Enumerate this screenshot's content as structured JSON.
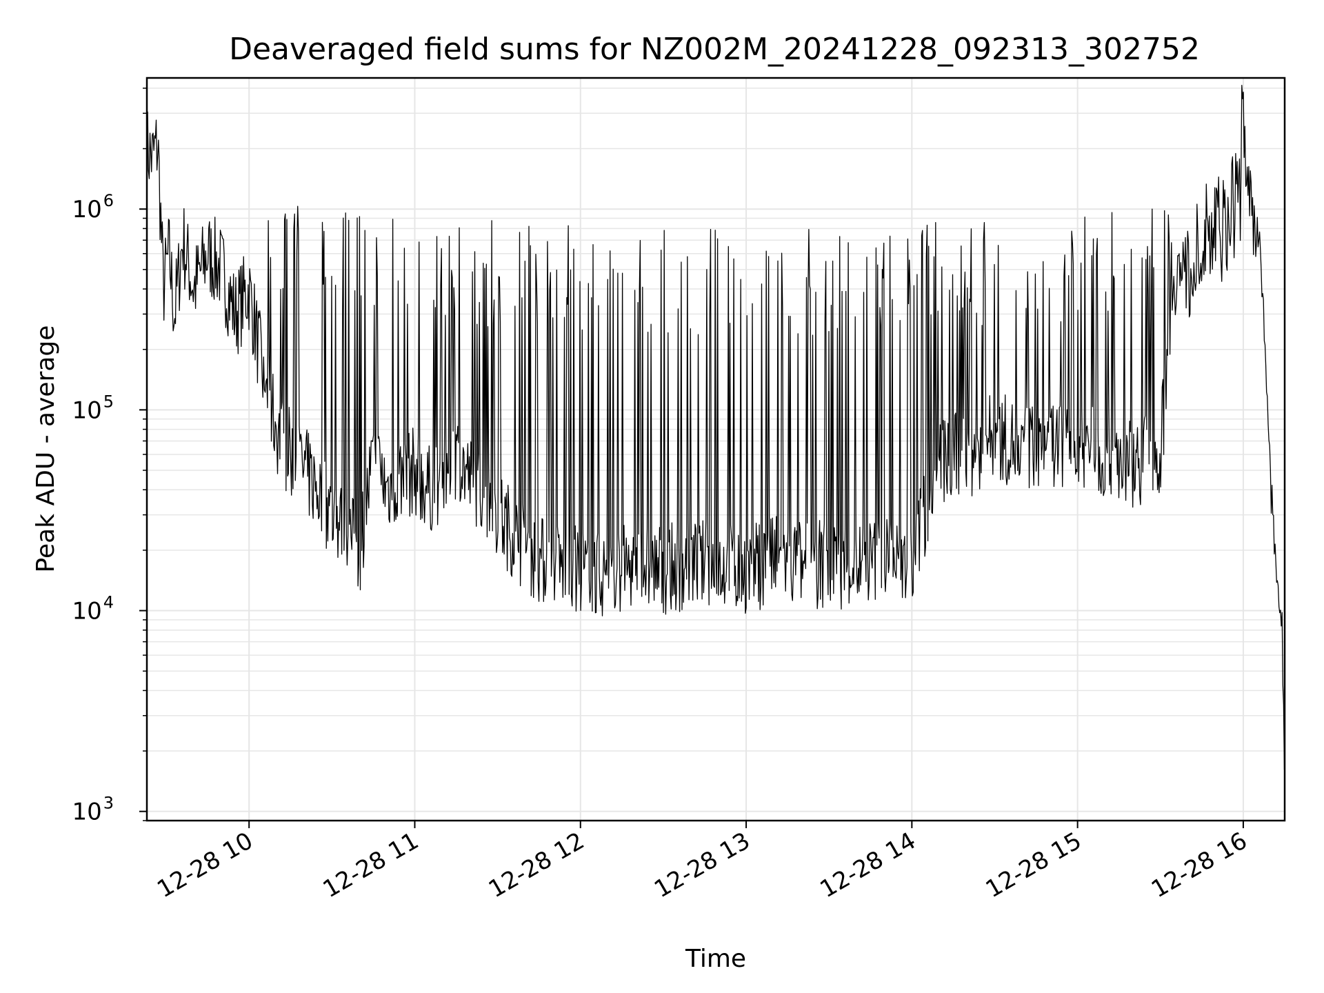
{
  "chart_data": {
    "type": "line",
    "title": "Deaveraged field sums for NZ002M_20241228_092313_302752",
    "xlabel": "Time",
    "ylabel": "Peak ADU - average",
    "x_tick_labels": [
      "12-28 10",
      "12-28 11",
      "12-28 12",
      "12-28 13",
      "12-28 14",
      "12-28 15",
      "12-28 16"
    ],
    "y_tick_labels": [
      {
        "base": "10",
        "exp": "3"
      },
      {
        "base": "10",
        "exp": "4"
      },
      {
        "base": "10",
        "exp": "5"
      },
      {
        "base": "10",
        "exp": "6"
      }
    ],
    "y_scale": "log",
    "xlim": [
      "2024-12-28 09:23",
      "2024-12-28 16:15"
    ],
    "ylim": [
      900,
      4500000
    ],
    "grid": true,
    "line_color": "#000000",
    "grid_color": "#e6e6e6",
    "series": [
      {
        "name": "",
        "x": [
          "09:23",
          "09:25",
          "09:27",
          "09:29",
          "09:31",
          "09:33",
          "09:36",
          "09:40",
          "09:45",
          "09:50",
          "09:55",
          "10:00",
          "10:05",
          "10:10",
          "10:15",
          "10:20",
          "10:25",
          "10:30",
          "10:35",
          "10:40",
          "10:45",
          "10:50",
          "10:55",
          "11:00",
          "11:05",
          "11:10",
          "11:15",
          "11:20",
          "11:25",
          "11:30",
          "11:35",
          "11:40",
          "11:45",
          "11:50",
          "11:55",
          "12:00",
          "12:10",
          "12:20",
          "12:30",
          "12:40",
          "12:50",
          "13:00",
          "13:10",
          "13:20",
          "13:30",
          "13:40",
          "13:50",
          "14:00",
          "14:10",
          "14:20",
          "14:30",
          "14:40",
          "14:50",
          "15:00",
          "15:10",
          "15:20",
          "15:30",
          "15:35",
          "15:40",
          "15:45",
          "15:50",
          "15:55",
          "16:00",
          "16:03",
          "16:06",
          "16:08",
          "16:10",
          "16:12",
          "16:14",
          "16:15"
        ],
        "y": [
          2000000,
          1800000,
          2100000,
          400000,
          600000,
          300000,
          700000,
          400000,
          600000,
          500000,
          300000,
          400000,
          150000,
          80000,
          60000,
          50000,
          40000,
          30000,
          25000,
          20000,
          60000,
          40000,
          45000,
          50000,
          40000,
          45000,
          60000,
          45000,
          40000,
          30000,
          25000,
          20000,
          18000,
          17000,
          16000,
          16000,
          15000,
          17000,
          16000,
          17000,
          17000,
          16000,
          18000,
          17000,
          17000,
          17000,
          18000,
          18000,
          55000,
          60000,
          75000,
          65000,
          70000,
          65000,
          60000,
          55000,
          60000,
          500000,
          450000,
          600000,
          900000,
          850000,
          3000000,
          1000000,
          600000,
          200000,
          40000,
          15000,
          9000,
          1400
        ]
      }
    ]
  }
}
